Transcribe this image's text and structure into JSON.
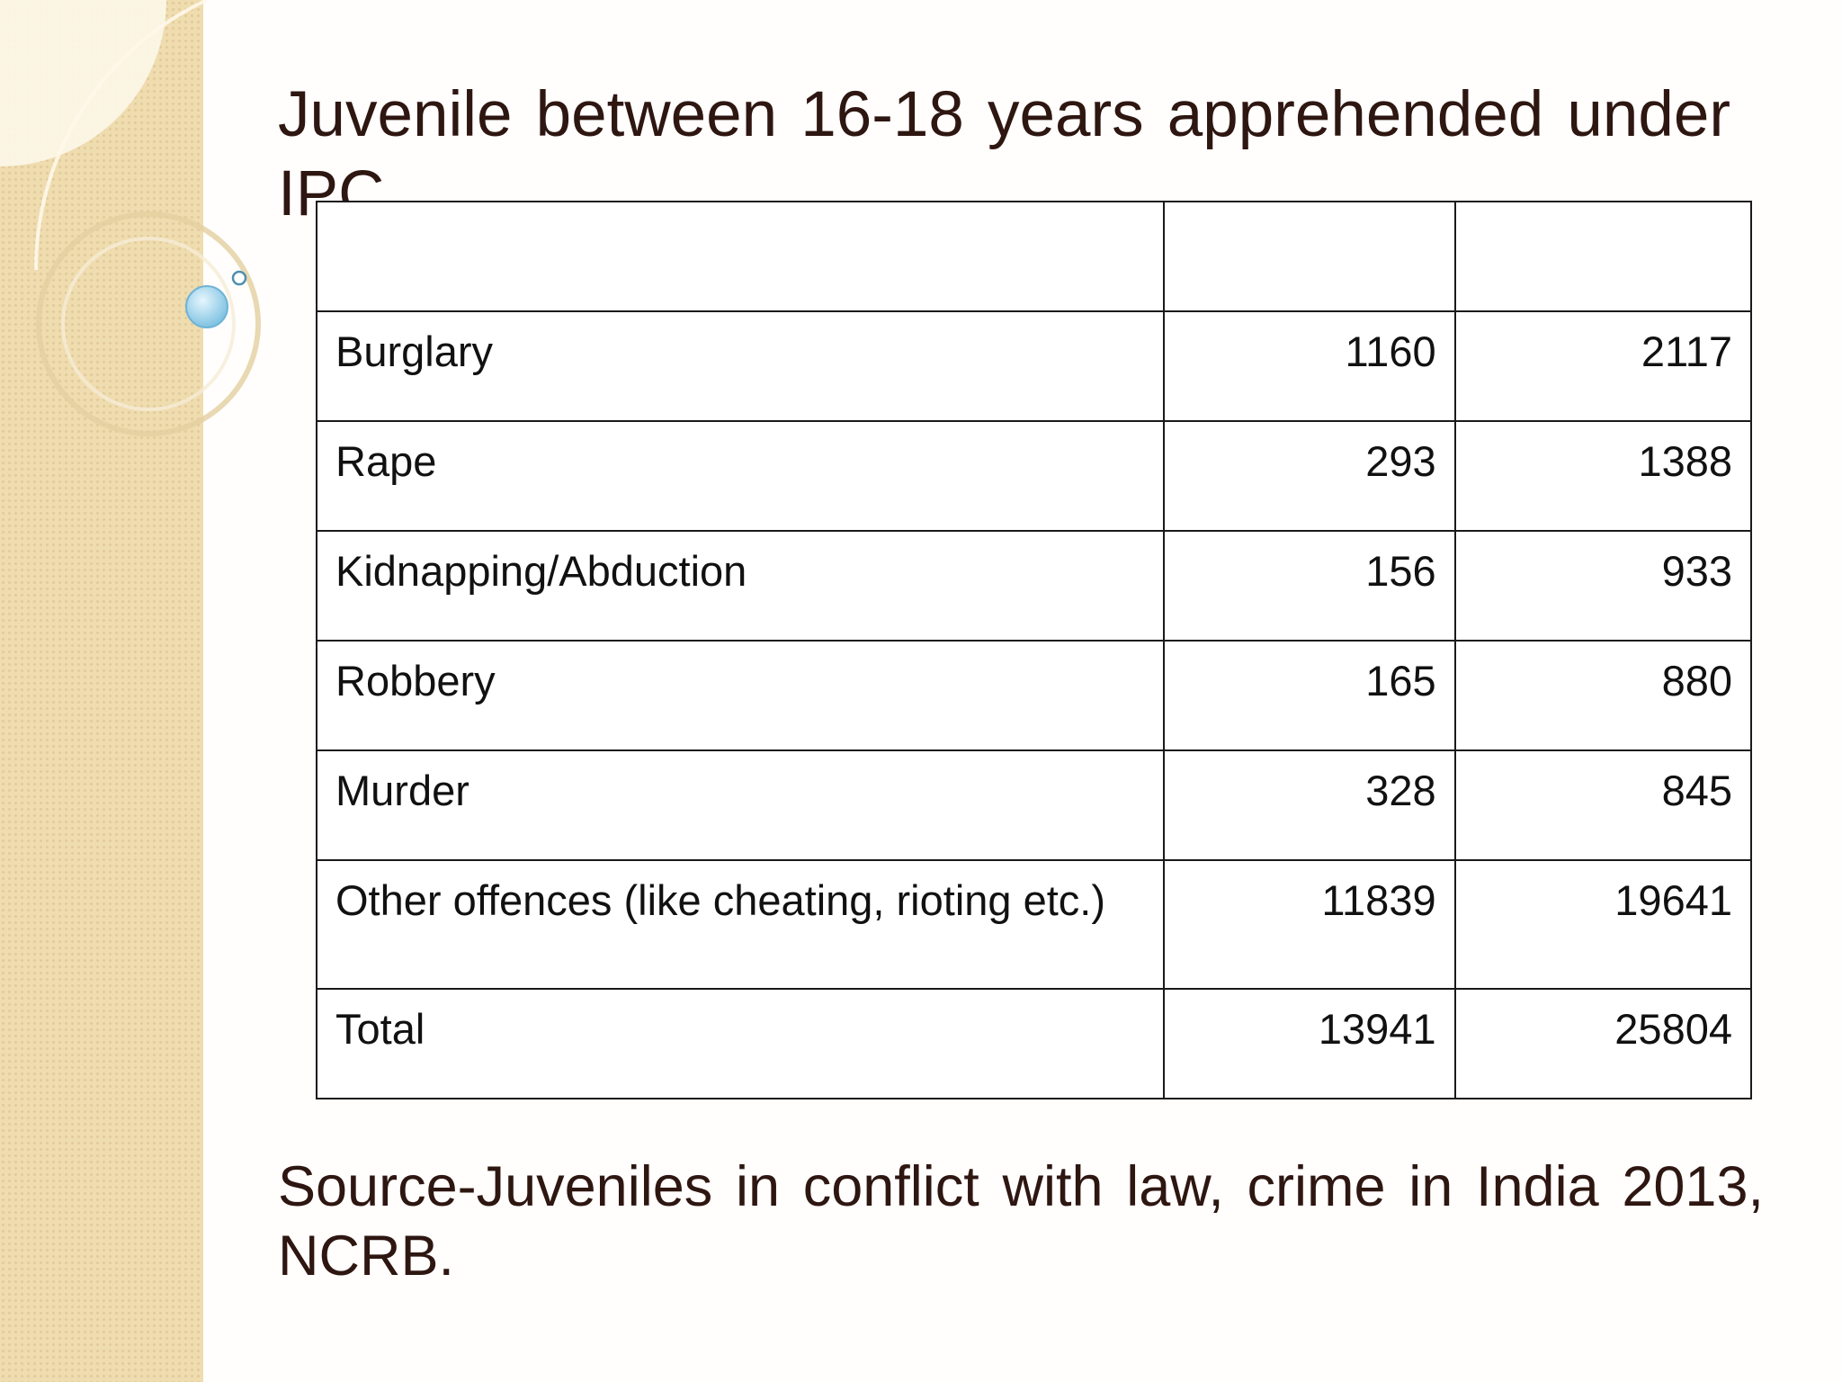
{
  "slide": {
    "title": "Juvenile between 16-18 years apprehended under IPC",
    "source": "Source-Juveniles in conflict with law, crime in India 2013, NCRB."
  },
  "table": {
    "header": [
      "",
      "",
      ""
    ],
    "rows": [
      {
        "offence": "Burglary",
        "col2": "1160",
        "col3": "2117"
      },
      {
        "offence": "Rape",
        "col2": "293",
        "col3": "1388"
      },
      {
        "offence": "Kidnapping/Abduction",
        "col2": "156",
        "col3": "933"
      },
      {
        "offence": "Robbery",
        "col2": "165",
        "col3": "880"
      },
      {
        "offence": "Murder",
        "col2": "328",
        "col3": "845"
      },
      {
        "offence": "Other offences (like cheating, rioting etc.)",
        "col2": "11839",
        "col3": "19641"
      },
      {
        "offence": "Total",
        "col2": "13941",
        "col3": "25804"
      }
    ]
  },
  "colors": {
    "title_text": "#2e1611",
    "side_strip": "#efdcaf",
    "bubble": "#8fcbe6"
  }
}
